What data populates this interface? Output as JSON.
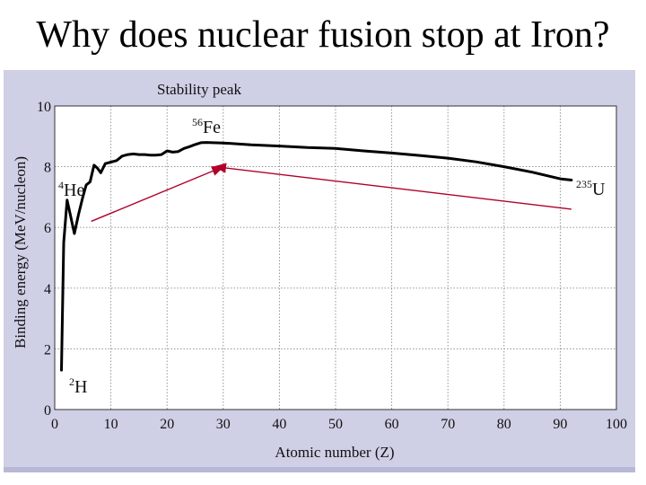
{
  "slide": {
    "title": "Why does nuclear fusion stop at Iron?"
  },
  "chart_data": {
    "type": "line",
    "title": "Stability peak",
    "xlabel": "Atomic number (Z)",
    "ylabel": "Binding energy (MeV/nucleon)",
    "xlim": [
      0,
      100
    ],
    "ylim": [
      0,
      10
    ],
    "xticks": [
      0,
      10,
      20,
      30,
      40,
      50,
      60,
      70,
      80,
      90,
      100
    ],
    "yticks": [
      0,
      2,
      4,
      6,
      8,
      10
    ],
    "grid": true,
    "series": [
      {
        "color": "#000000",
        "x": [
          1.2,
          1.6,
          2.2,
          2.8,
          3.5,
          4.2,
          5.0,
          5.6,
          6.3,
          7.0,
          7.6,
          8.2,
          9.0,
          10.0,
          11.0,
          12.0,
          13.0,
          14.0,
          15.0,
          16.0,
          17.0,
          18.0,
          19.0,
          20.0,
          21.0,
          22.0,
          23.0,
          24.0,
          25.0,
          26.0,
          27.0,
          30.0,
          35.0,
          40.0,
          45.0,
          50.0,
          55.0,
          60.0,
          65.0,
          70.0,
          75.0,
          80.0,
          85.0,
          90.0,
          92.0
        ],
        "y": [
          1.3,
          5.5,
          6.9,
          6.4,
          5.8,
          6.4,
          7.0,
          7.4,
          7.5,
          8.05,
          7.95,
          7.8,
          8.1,
          8.15,
          8.2,
          8.35,
          8.4,
          8.42,
          8.4,
          8.4,
          8.38,
          8.38,
          8.4,
          8.52,
          8.48,
          8.5,
          8.6,
          8.66,
          8.73,
          8.79,
          8.8,
          8.78,
          8.72,
          8.68,
          8.63,
          8.6,
          8.52,
          8.45,
          8.37,
          8.28,
          8.16,
          8.0,
          7.82,
          7.6,
          7.56
        ]
      }
    ],
    "arrows": [
      {
        "from": [
          6.5,
          6.2
        ],
        "to": [
          30.0,
          8.0
        ],
        "color": "#b0002a"
      },
      {
        "from": [
          92.0,
          6.6
        ],
        "to": [
          28.5,
          8.0
        ],
        "color": "#b0002a"
      }
    ],
    "annotations": [
      {
        "sup": "2",
        "base": "H"
      },
      {
        "sup": "4",
        "base": "He"
      },
      {
        "sup": "56",
        "base": "Fe"
      },
      {
        "sup": "235",
        "base": "U"
      }
    ]
  }
}
